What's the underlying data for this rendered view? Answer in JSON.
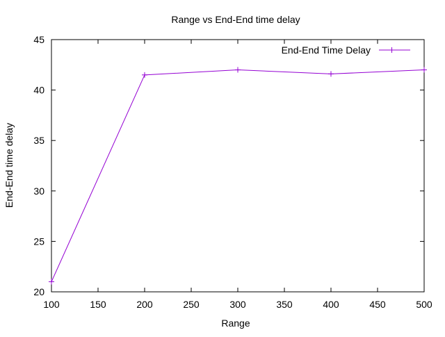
{
  "chart_data": {
    "type": "line",
    "title": "Range vs End-End time delay",
    "xlabel": "Range",
    "ylabel": "End-End time delay",
    "xlim": [
      100,
      500
    ],
    "ylim": [
      20,
      45
    ],
    "x_ticks": [
      100,
      150,
      200,
      250,
      300,
      350,
      400,
      450,
      500
    ],
    "y_ticks": [
      20,
      25,
      30,
      35,
      40,
      45
    ],
    "grid": false,
    "legend_position": "top-right",
    "series": [
      {
        "name": "End-End Time Delay",
        "color": "#9400d3",
        "marker": "plus",
        "x": [
          100,
          200,
          300,
          400,
          500
        ],
        "y": [
          21.0,
          41.5,
          42.0,
          41.6,
          42.0
        ]
      }
    ]
  }
}
